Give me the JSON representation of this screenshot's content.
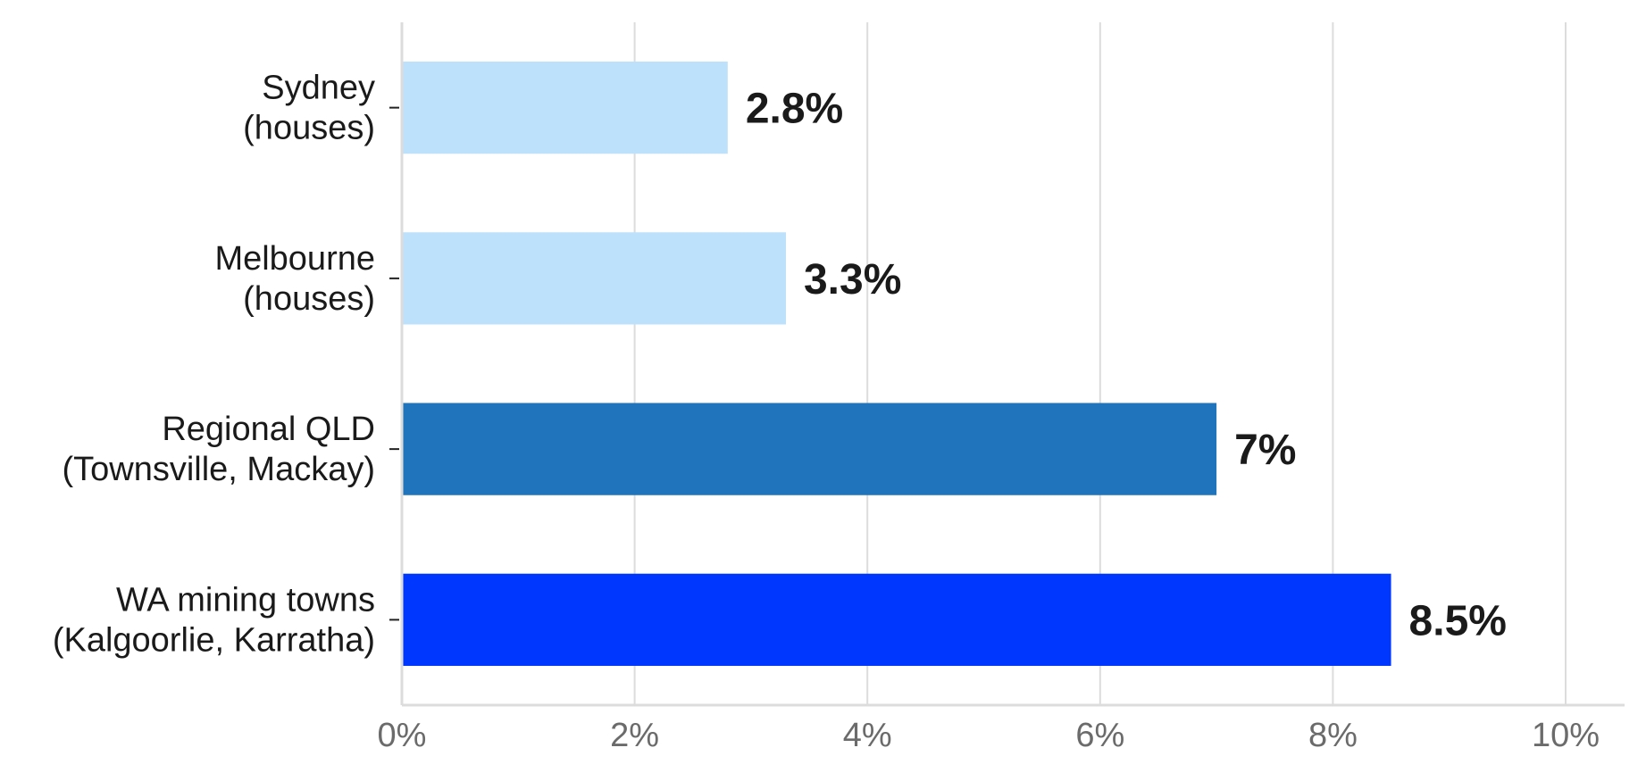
{
  "chart_data": {
    "type": "bar",
    "orientation": "horizontal",
    "categories": [
      [
        "Sydney",
        "(houses)"
      ],
      [
        "Melbourne",
        "(houses)"
      ],
      [
        "Regional QLD",
        "(Townsville, Mackay)"
      ],
      [
        "WA mining towns",
        "(Kalgoorlie, Karratha)"
      ]
    ],
    "values": [
      2.8,
      3.3,
      7,
      8.5
    ],
    "value_labels": [
      "2.8%",
      "3.3%",
      "7%",
      "8.5%"
    ],
    "bar_colors": [
      "#bee1fb",
      "#bee1fb",
      "#1f74bc",
      "#0037ff"
    ],
    "xlim": [
      0,
      10
    ],
    "x_ticks": [
      0,
      2,
      4,
      6,
      8,
      10
    ],
    "x_tick_labels": [
      "0%",
      "2%",
      "4%",
      "6%",
      "8%",
      "10%"
    ],
    "title": "",
    "xlabel": "",
    "ylabel": "",
    "grid": "vertical",
    "legend": "none"
  }
}
